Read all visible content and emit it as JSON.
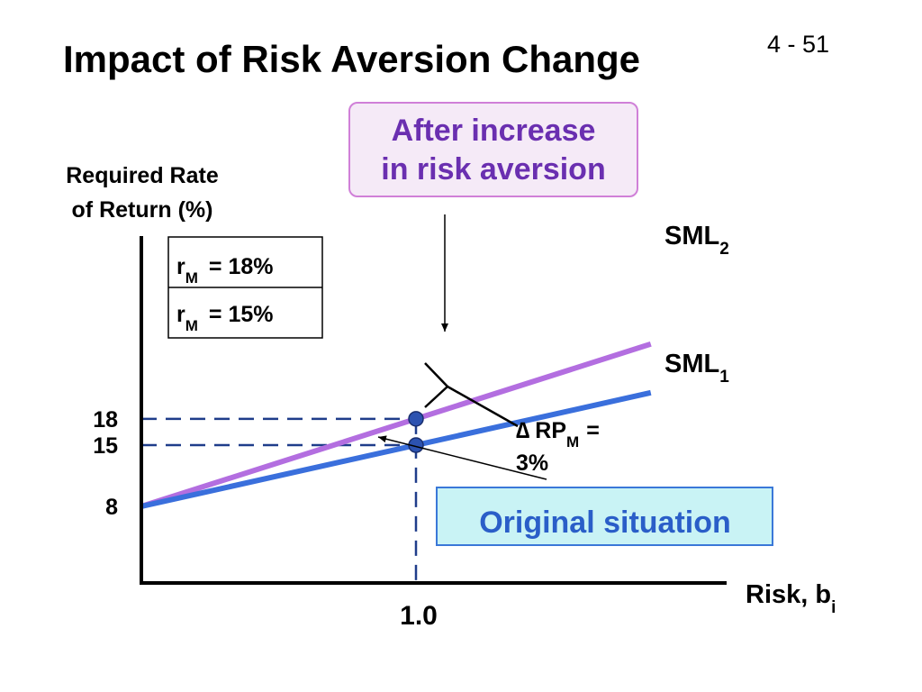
{
  "slide": {
    "title": "Impact of Risk Aversion Change",
    "number": "4 - 51"
  },
  "chart_data": {
    "type": "line",
    "title": "Impact of Risk Aversion Change",
    "xlabel": "Risk, b",
    "xlabel_subscript": "i",
    "ylabel_lines": [
      "Required Rate",
      "of Return (%)"
    ],
    "y_ticks": [
      8,
      15,
      18
    ],
    "x_ticks": [
      1.0
    ],
    "x_tick_labels": [
      "1.0"
    ],
    "series": [
      {
        "name": "SML",
        "name_subscript": "2",
        "color": "#b36ee0",
        "x": [
          0,
          1.0,
          2.0
        ],
        "y": [
          8,
          18,
          28
        ]
      },
      {
        "name": "SML",
        "name_subscript": "1",
        "color": "#3a6fdc",
        "x": [
          0,
          1.0,
          2.0
        ],
        "y": [
          8,
          15,
          22
        ]
      }
    ],
    "points": [
      {
        "x": 1.0,
        "y": 18
      },
      {
        "x": 1.0,
        "y": 15
      }
    ],
    "point_color": "#2c52b0",
    "market_returns": [
      {
        "symbol": "r",
        "subscript": "M",
        "text": "= 18%"
      },
      {
        "symbol": "r",
        "subscript": "M",
        "text": "= 15%"
      }
    ],
    "annotations": {
      "after": {
        "lines": [
          "After increase",
          "in risk aversion"
        ],
        "text_color": "#6a2fb0",
        "bg": "#f5eaf7",
        "border": "#d080d8"
      },
      "original": {
        "text": "Original situation",
        "text_color": "#2a5ec8",
        "bg": "#c9f3f5",
        "border": "#3a78d8"
      },
      "delta": {
        "symbol": "∆",
        "label": "RP",
        "subscript": "M",
        "suffix": "=",
        "line2": "3%"
      }
    }
  }
}
